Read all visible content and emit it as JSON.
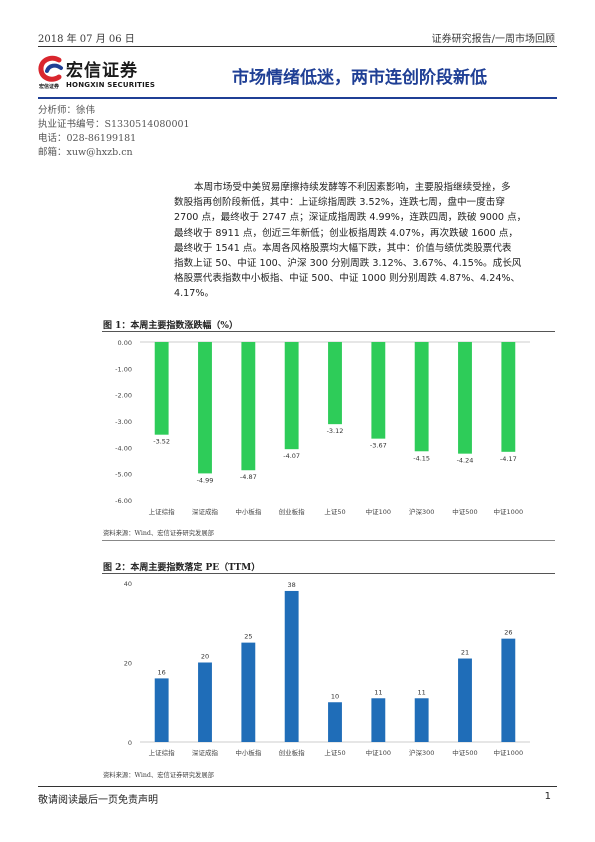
{
  "header": {
    "date": "2018 年 07 月 06 日",
    "report_type": "证券研究报告/一周市场回顾"
  },
  "logo": {
    "name_cn": "宏信证券",
    "small_cn": "宏信证券",
    "name_en": "HONGXIN SECURITIES",
    "brand_red": "#d9262e",
    "brand_blue": "#1f3f95"
  },
  "title": "市场情绪低迷，两市连创阶段新低",
  "analyst": {
    "name": "分析师：徐伟",
    "license": "执业证书编号：S1330514080001",
    "phone": "电话：028-86199181",
    "email": "邮箱：xuw@hxzb.cn"
  },
  "body": {
    "lines": [
      "本周市场受中美贸易摩擦持续发酵等不利因素影响，主要股指继续受挫，多",
      "数股指再创阶段新低，其中：上证综指周跌 3.52%，连跌七周，盘中一度击穿",
      "2700 点，最终收于 2747 点；深证成指周跌 4.99%，连跌四周，跌破 9000 点，",
      "最终收于 8911 点，创近三年新低；创业板指周跌 4.07%，再次跌破 1600 点，",
      "最终收于 1541 点。本周各风格股票均大幅下跌，其中：价值与绩优类股票代表",
      "指数上证 50、中证 100、沪深 300 分别周跌 3.12%、3.67%、4.15%。成长风",
      "格股票代表指数中小板指、中证 500、中证 1000 则分别周跌 4.87%、4.24%、",
      "4.17%。"
    ]
  },
  "figure1": {
    "title": "图 1：本周主要指数涨跌幅（%）",
    "source": "资料来源：Wind、宏信证券研究发展部"
  },
  "figure2": {
    "title": "图 2：本周主要指数落定 PE（TTM）",
    "source": "资料来源：Wind、宏信证券研究发展部"
  },
  "chart_data": [
    {
      "type": "bar",
      "title": "图 1：本周主要指数涨跌幅（%）",
      "categories": [
        "上证综指",
        "深证成指",
        "中小板指",
        "创业板指",
        "上证50",
        "中证100",
        "沪深300",
        "中证500",
        "中证1000"
      ],
      "values": [
        -3.52,
        -4.99,
        -4.87,
        -4.07,
        -3.12,
        -3.67,
        -4.15,
        -4.24,
        -4.17
      ],
      "value_labels": [
        "-3.52",
        "-4.99",
        "-4.87",
        "-4.07",
        "-3.12",
        "-3.67",
        "-4.15",
        "-4.24",
        "-4.17"
      ],
      "ylim": [
        -6,
        0
      ],
      "yticks": [
        0,
        -1,
        -2,
        -3,
        -4,
        -5,
        -6
      ],
      "ytick_labels": [
        "0.00",
        "-1.00",
        "-2.00",
        "-3.00",
        "-4.00",
        "-5.00",
        "-6.00"
      ],
      "color": "#2ecc59",
      "grid": false
    },
    {
      "type": "bar",
      "title": "图 2：本周主要指数落定 PE（TTM）",
      "categories": [
        "上证综指",
        "深证成指",
        "中小板指",
        "创业板指",
        "上证50",
        "中证100",
        "沪深300",
        "中证500",
        "中证1000"
      ],
      "values": [
        16,
        20,
        25,
        38,
        10,
        11,
        11,
        21,
        26
      ],
      "value_labels": [
        "16",
        "20",
        "25",
        "38",
        "10",
        "11",
        "11",
        "21",
        "26"
      ],
      "ylim": [
        0,
        40
      ],
      "yticks": [
        0,
        20,
        40
      ],
      "ytick_labels": [
        "0",
        "20",
        "40"
      ],
      "color": "#1f6db8",
      "grid": false
    }
  ],
  "footer": {
    "disclaimer": "敬请阅读最后一页免责声明",
    "page_number": "1"
  }
}
